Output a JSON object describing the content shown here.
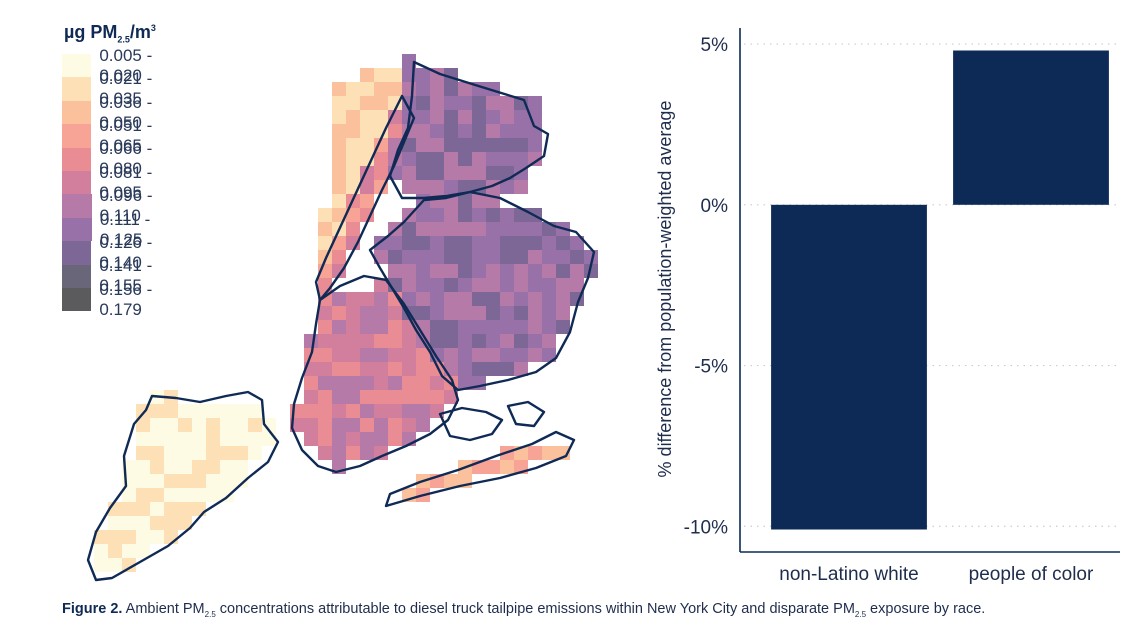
{
  "legend": {
    "title_main": "µg PM",
    "title_sub": "2.5",
    "title_unit": "/m",
    "title_sup": "3",
    "items": [
      {
        "label": "0.005 - 0.020",
        "color": "#fefbe4"
      },
      {
        "label": "0.021 - 0.035",
        "color": "#fde0b6"
      },
      {
        "label": "0.036 - 0.050",
        "color": "#fbc19c"
      },
      {
        "label": "0.051 - 0.065",
        "color": "#f7a396"
      },
      {
        "label": "0.066 - 0.080",
        "color": "#ea8c94"
      },
      {
        "label": "0.081 - 0.095",
        "color": "#d27f9e"
      },
      {
        "label": "0.096 - 0.110",
        "color": "#b57aa8"
      },
      {
        "label": "0.111 - 0.125",
        "color": "#9771a8"
      },
      {
        "label": "0.126 - 0.140",
        "color": "#7c6797"
      },
      {
        "label": "0.141 - 0.155",
        "color": "#686678"
      },
      {
        "label": "0.156 - 0.179",
        "color": "#5b5b5e"
      }
    ]
  },
  "chart_data": {
    "type": "bar",
    "categories": [
      "non-Latino white",
      "people of color"
    ],
    "values": [
      -10.1,
      4.8
    ],
    "ylabel": "% difference from population-weighted average",
    "ylim": [
      -10.8,
      5.5
    ],
    "yticks": [
      5,
      0,
      -5,
      -10
    ],
    "ytick_labels": [
      "5%",
      "0%",
      "-5%",
      "-10%"
    ],
    "grid": "horizontal dotted",
    "bar_color": "#0c2a55"
  },
  "caption": {
    "figure_label": "Figure 2.",
    "part1": " Ambient PM",
    "sub1": "2.5",
    "part2": " concentrations attributable to diesel truck tailpipe emissions within New York City and disparate PM",
    "sub2": "2.5",
    "part3": " exposure by race."
  }
}
